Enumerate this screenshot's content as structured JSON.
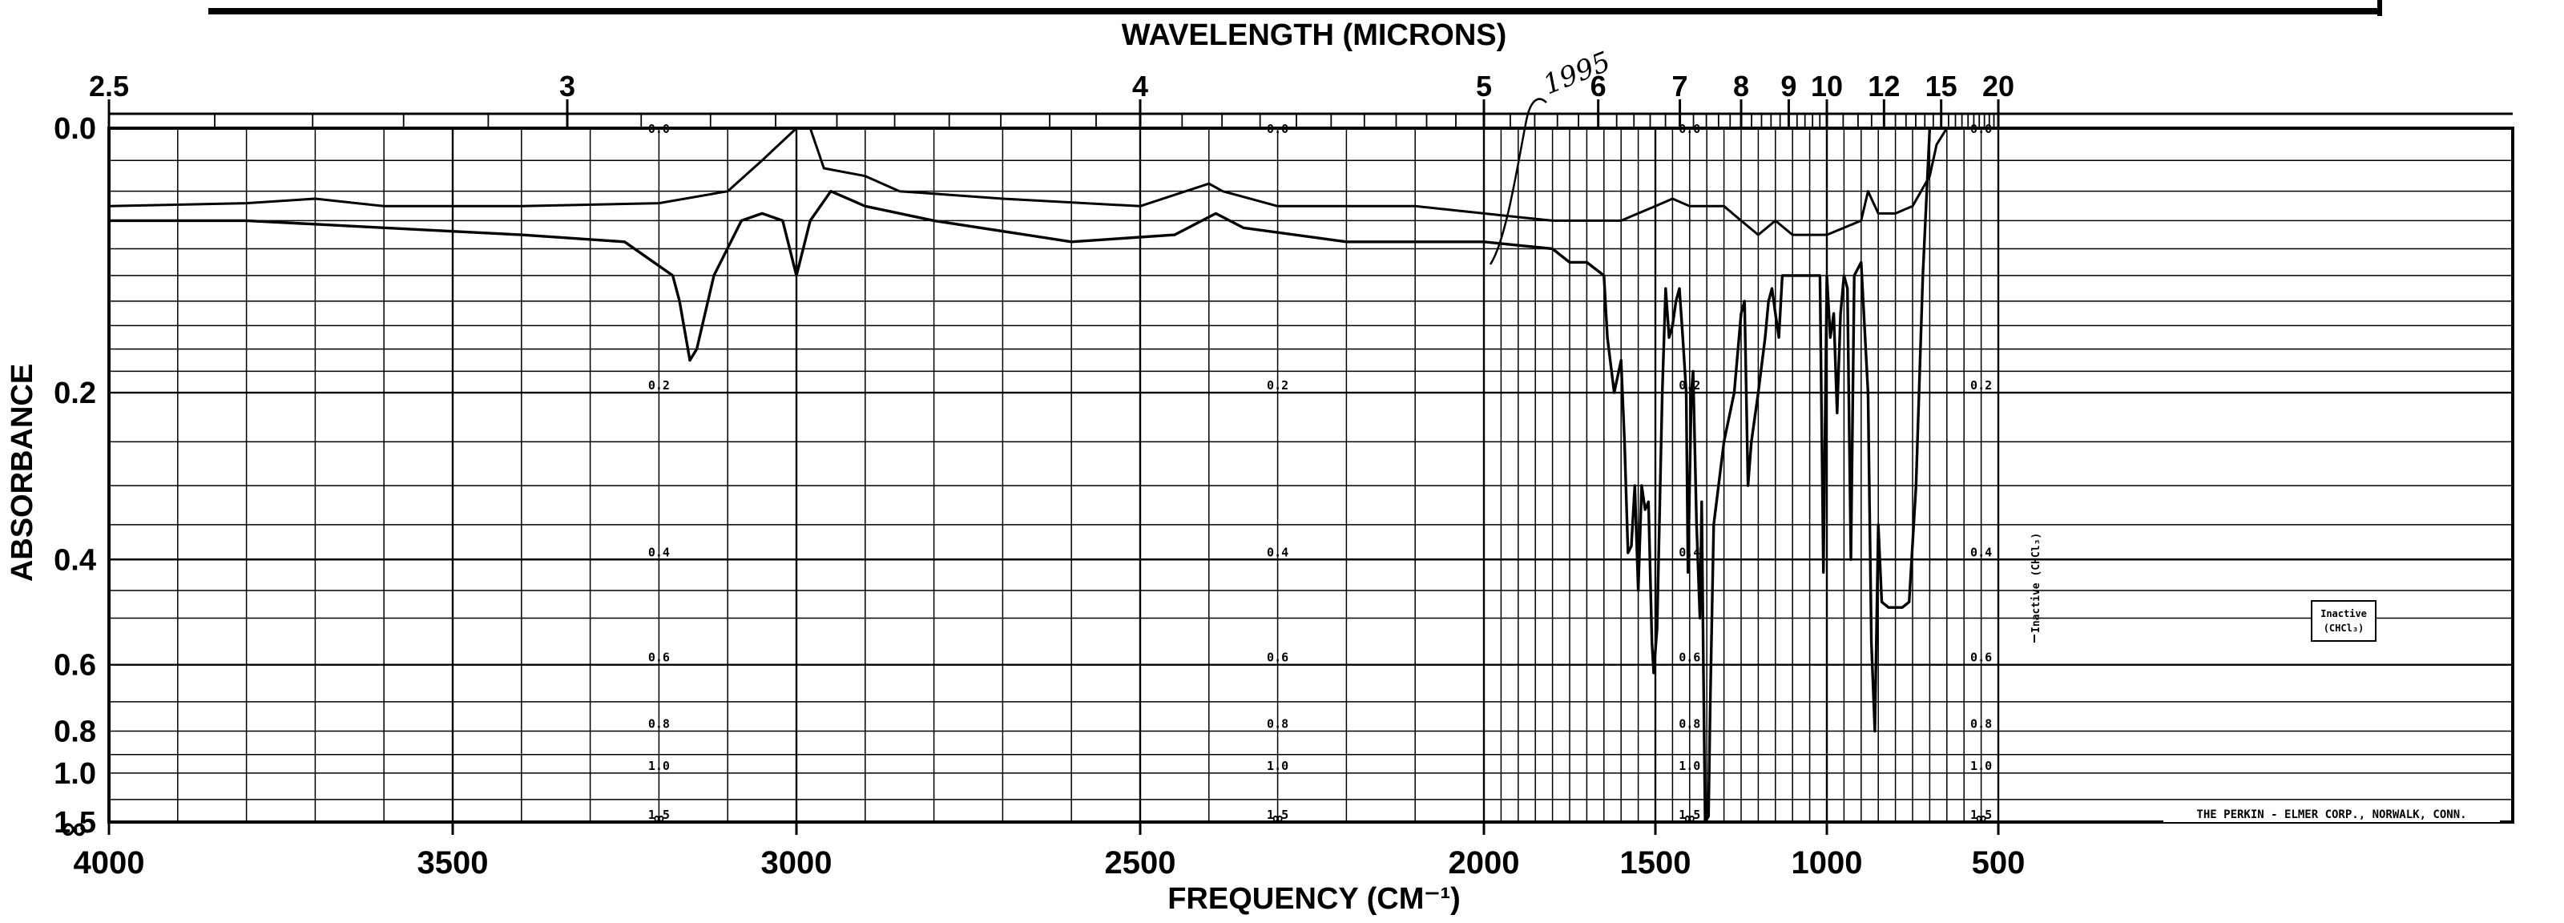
{
  "chart_data": {
    "type": "line",
    "top_axis_title": "WAVELENGTH (MICRONS)",
    "bottom_axis_title": "FREQUENCY (CM⁻¹)",
    "y_axis_title": "ABSORBANCE",
    "xlim": [
      4000,
      500
    ],
    "ylim": [
      0.0,
      1.5
    ],
    "x_ticks": [
      {
        "value": 4000,
        "label": "4000"
      },
      {
        "value": 3500,
        "label": "3500"
      },
      {
        "value": 3000,
        "label": "3000"
      },
      {
        "value": 2500,
        "label": "2500"
      },
      {
        "value": 2000,
        "label": "2000"
      },
      {
        "value": 1500,
        "label": "1500"
      },
      {
        "value": 1000,
        "label": "1000"
      },
      {
        "value": 500,
        "label": "500"
      }
    ],
    "wavelength_ticks": [
      {
        "value": 2.5,
        "label": "2.5"
      },
      {
        "value": 3,
        "label": "3"
      },
      {
        "value": 4,
        "label": "4"
      },
      {
        "value": 5,
        "label": "5"
      },
      {
        "value": 6,
        "label": "6"
      },
      {
        "value": 7,
        "label": "7"
      },
      {
        "value": 8,
        "label": "8"
      },
      {
        "value": 9,
        "label": "9"
      },
      {
        "value": 10,
        "label": "10"
      },
      {
        "value": 12,
        "label": "12"
      },
      {
        "value": 15,
        "label": "15"
      },
      {
        "value": 20,
        "label": "20"
      }
    ],
    "y_ticks": [
      {
        "value": 0.0,
        "label": "0.0"
      },
      {
        "value": 0.2,
        "label": "0.2"
      },
      {
        "value": 0.4,
        "label": "0.4"
      },
      {
        "value": 0.6,
        "label": "0.6"
      },
      {
        "value": 0.8,
        "label": "0.8"
      },
      {
        "value": 1.0,
        "label": "1.0"
      },
      {
        "value": 1.5,
        "label": "1.5"
      }
    ],
    "inner_scale_labels": [
      "0.0",
      "0.2",
      "0.4",
      "0.6",
      "0.8",
      "1.0",
      "1.5",
      "∞"
    ],
    "inner_scale_columns": [
      3200,
      2300,
      1400,
      550
    ],
    "bottom_infinity": "∞",
    "annotations": {
      "handwritten": "1995",
      "inactive_vertical": "Inactive (CHCl₃)",
      "inactive_box": [
        "Inactive",
        "(CHCl₃)"
      ],
      "maker": "THE PERKIN - ELMER CORP., NORWALK, CONN."
    },
    "series": [
      {
        "points": [
          [
            4000,
            0.05
          ],
          [
            3800,
            0.048
          ],
          [
            3700,
            0.045
          ],
          [
            3600,
            0.05
          ],
          [
            3400,
            0.05
          ],
          [
            3200,
            0.048
          ],
          [
            3100,
            0.04
          ],
          [
            3050,
            0.02
          ],
          [
            3000,
            0.0
          ],
          [
            2980,
            0.0
          ],
          [
            2960,
            0.025
          ],
          [
            2900,
            0.03
          ],
          [
            2850,
            0.04
          ],
          [
            2700,
            0.045
          ],
          [
            2500,
            0.05
          ],
          [
            2400,
            0.035
          ],
          [
            2380,
            0.04
          ],
          [
            2300,
            0.05
          ],
          [
            2100,
            0.05
          ],
          [
            2000,
            0.055
          ],
          [
            1800,
            0.06
          ],
          [
            1600,
            0.06
          ],
          [
            1500,
            0.05
          ],
          [
            1450,
            0.045
          ],
          [
            1400,
            0.05
          ],
          [
            1300,
            0.05
          ],
          [
            1250,
            0.06
          ],
          [
            1200,
            0.07
          ],
          [
            1150,
            0.06
          ],
          [
            1100,
            0.07
          ],
          [
            1000,
            0.07
          ],
          [
            950,
            0.065
          ],
          [
            900,
            0.06
          ],
          [
            880,
            0.04
          ],
          [
            850,
            0.055
          ],
          [
            800,
            0.055
          ],
          [
            750,
            0.05
          ],
          [
            700,
            0.03
          ],
          [
            680,
            0.01
          ],
          [
            650,
            0.0
          ]
        ]
      },
      {
        "points": [
          [
            4000,
            0.06
          ],
          [
            3800,
            0.06
          ],
          [
            3600,
            0.065
          ],
          [
            3400,
            0.07
          ],
          [
            3250,
            0.075
          ],
          [
            3180,
            0.1
          ],
          [
            3170,
            0.12
          ],
          [
            3155,
            0.17
          ],
          [
            3145,
            0.16
          ],
          [
            3120,
            0.1
          ],
          [
            3080,
            0.06
          ],
          [
            3050,
            0.055
          ],
          [
            3020,
            0.06
          ],
          [
            3000,
            0.1
          ],
          [
            2980,
            0.06
          ],
          [
            2950,
            0.04
          ],
          [
            2900,
            0.05
          ],
          [
            2800,
            0.06
          ],
          [
            2600,
            0.075
          ],
          [
            2450,
            0.07
          ],
          [
            2390,
            0.055
          ],
          [
            2350,
            0.065
          ],
          [
            2200,
            0.075
          ],
          [
            2000,
            0.075
          ],
          [
            1800,
            0.08
          ],
          [
            1750,
            0.09
          ],
          [
            1700,
            0.09
          ],
          [
            1650,
            0.1
          ],
          [
            1640,
            0.15
          ],
          [
            1620,
            0.2
          ],
          [
            1600,
            0.17
          ],
          [
            1590,
            0.25
          ],
          [
            1580,
            0.39
          ],
          [
            1570,
            0.38
          ],
          [
            1560,
            0.3
          ],
          [
            1550,
            0.45
          ],
          [
            1540,
            0.3
          ],
          [
            1530,
            0.33
          ],
          [
            1520,
            0.32
          ],
          [
            1510,
            0.55
          ],
          [
            1505,
            0.62
          ],
          [
            1495,
            0.52
          ],
          [
            1480,
            0.2
          ],
          [
            1470,
            0.11
          ],
          [
            1460,
            0.15
          ],
          [
            1450,
            0.14
          ],
          [
            1440,
            0.12
          ],
          [
            1430,
            0.11
          ],
          [
            1420,
            0.15
          ],
          [
            1410,
            0.2
          ],
          [
            1405,
            0.42
          ],
          [
            1395,
            0.2
          ],
          [
            1390,
            0.18
          ],
          [
            1380,
            0.35
          ],
          [
            1370,
            0.5
          ],
          [
            1365,
            0.32
          ],
          [
            1360,
            0.6
          ],
          [
            1355,
            1.5
          ],
          [
            1345,
            1.4
          ],
          [
            1340,
            0.7
          ],
          [
            1330,
            0.35
          ],
          [
            1300,
            0.25
          ],
          [
            1270,
            0.2
          ],
          [
            1250,
            0.13
          ],
          [
            1240,
            0.12
          ],
          [
            1230,
            0.3
          ],
          [
            1220,
            0.25
          ],
          [
            1200,
            0.2
          ],
          [
            1180,
            0.15
          ],
          [
            1170,
            0.12
          ],
          [
            1160,
            0.11
          ],
          [
            1150,
            0.13
          ],
          [
            1140,
            0.15
          ],
          [
            1130,
            0.1
          ],
          [
            1100,
            0.1
          ],
          [
            1050,
            0.1
          ],
          [
            1020,
            0.1
          ],
          [
            1010,
            0.42
          ],
          [
            1000,
            0.1
          ],
          [
            990,
            0.15
          ],
          [
            980,
            0.13
          ],
          [
            970,
            0.22
          ],
          [
            960,
            0.13
          ],
          [
            950,
            0.1
          ],
          [
            940,
            0.11
          ],
          [
            930,
            0.4
          ],
          [
            920,
            0.1
          ],
          [
            900,
            0.09
          ],
          [
            880,
            0.2
          ],
          [
            870,
            0.55
          ],
          [
            860,
            0.8
          ],
          [
            850,
            0.35
          ],
          [
            840,
            0.47
          ],
          [
            820,
            0.48
          ],
          [
            780,
            0.48
          ],
          [
            760,
            0.47
          ],
          [
            740,
            0.3
          ],
          [
            720,
            0.1
          ],
          [
            700,
            0.0
          ],
          [
            690,
            0.0
          ]
        ]
      }
    ]
  }
}
